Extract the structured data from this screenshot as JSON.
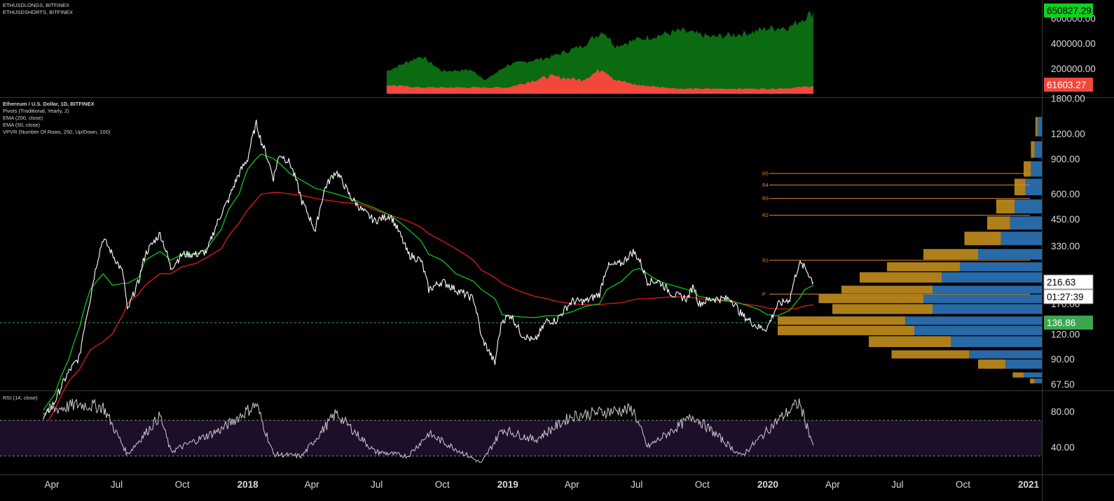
{
  "panes": {
    "top_legend": [
      "ETHUSDLONGS, BITFINEX",
      "ETHUSDSHORTS, BITFINEX"
    ],
    "main_legend": {
      "title": "Ethereum / U.S. Dollar, 1D, BITFINEX",
      "lines": [
        "Pivots (Traditional, Yearly, 2)",
        "EMA (200, close)",
        "EMA (50, close)",
        "VPVR (Number Of Rows, 250, Up/Down, 100)"
      ]
    },
    "rsi_legend": "RSI (14, close)"
  },
  "axis": {
    "top_ticks": [
      "600000.00",
      "400000.00",
      "200000.00"
    ],
    "main_ticks": [
      "1800.00",
      "1200.00",
      "900.00",
      "600.00",
      "450.00",
      "330.00",
      "170.00",
      "120.00",
      "90.00",
      "67.50"
    ],
    "rsi_ticks": [
      "80.00",
      "40.00"
    ],
    "x_ticks": [
      "Apr",
      "Jul",
      "Oct",
      "2018",
      "Apr",
      "Jul",
      "Oct",
      "2019",
      "Apr",
      "Jul",
      "Oct",
      "2020",
      "Apr",
      "Jul",
      "Oct",
      "2021"
    ]
  },
  "tags": {
    "longs_last": "650827.29",
    "shorts_last": "61603.27",
    "price_last": "216.63",
    "countdown": "01:27:39",
    "hline_price": "136.86"
  },
  "pivots": [
    "R5",
    "R4",
    "R3",
    "R2",
    "R1",
    "P"
  ],
  "colors": {
    "longs": "#0b6b12",
    "shorts": "#f2473b",
    "price": "#ffffff",
    "ema50": "#12c31e",
    "ema200": "#e11b1b",
    "pivot": "#e08a2c",
    "vp_up": "#2a6fb0",
    "vp_down": "#b8861b",
    "rsi": "#cccccc",
    "rsi_band": "#1d0f2a",
    "tag_green": "#3aa651",
    "tag_red": "#f2473b",
    "tag_bright_green": "#11d11f"
  },
  "chart_data": {
    "type": "line",
    "title": "Ethereum / U.S. Dollar, 1D, BITFINEX",
    "y_scale": "log",
    "ylim": [
      67.5,
      1800
    ],
    "hline": 136.86,
    "price": {
      "dates": [
        "2017-03-20",
        "2017-04-05",
        "2017-04-25",
        "2017-05-10",
        "2017-05-25",
        "2017-06-12",
        "2017-06-25",
        "2017-07-10",
        "2017-07-16",
        "2017-08-01",
        "2017-08-10",
        "2017-08-31",
        "2017-09-15",
        "2017-10-01",
        "2017-10-20",
        "2017-11-05",
        "2017-11-25",
        "2017-12-05",
        "2017-12-20",
        "2018-01-01",
        "2018-01-13",
        "2018-01-20",
        "2018-02-06",
        "2018-02-15",
        "2018-03-01",
        "2018-03-18",
        "2018-04-06",
        "2018-04-20",
        "2018-05-05",
        "2018-05-25",
        "2018-06-10",
        "2018-06-28",
        "2018-07-20",
        "2018-08-14",
        "2018-09-01",
        "2018-09-12",
        "2018-10-01",
        "2018-10-20",
        "2018-11-14",
        "2018-11-25",
        "2018-12-14",
        "2018-12-24",
        "2019-01-05",
        "2019-01-20",
        "2019-02-08",
        "2019-02-25",
        "2019-03-10",
        "2019-04-01",
        "2019-04-20",
        "2019-05-10",
        "2019-05-20",
        "2019-06-10",
        "2019-06-26",
        "2019-07-05",
        "2019-07-16",
        "2019-08-01",
        "2019-08-20",
        "2019-09-10",
        "2019-09-19",
        "2019-09-26",
        "2019-10-15",
        "2019-10-26",
        "2019-11-10",
        "2019-11-25",
        "2019-12-18",
        "2019-12-31",
        "2020-01-15",
        "2020-02-01",
        "2020-02-14",
        "2020-02-22",
        "2020-03-05"
      ],
      "values": [
        45,
        55,
        78,
        92,
        180,
        360,
        300,
        240,
        155,
        220,
        300,
        380,
        255,
        300,
        300,
        310,
        480,
        560,
        760,
        900,
        1350,
        1100,
        720,
        950,
        860,
        550,
        390,
        650,
        780,
        580,
        500,
        440,
        470,
        300,
        280,
        200,
        220,
        200,
        180,
        115,
        85,
        140,
        150,
        120,
        110,
        140,
        140,
        175,
        175,
        190,
        260,
        270,
        310,
        280,
        220,
        220,
        190,
        180,
        210,
        170,
        180,
        180,
        180,
        150,
        130,
        128,
        168,
        180,
        270,
        258,
        216.63
      ]
    },
    "ema50_values": [
      50,
      60,
      90,
      130,
      200,
      240,
      210,
      215,
      215,
      230,
      280,
      310,
      280,
      300,
      300,
      320,
      400,
      500,
      600,
      800,
      900,
      950,
      900,
      850,
      760,
      700,
      640,
      620,
      600,
      570,
      540,
      510,
      470,
      400,
      350,
      300,
      280,
      240,
      220,
      200,
      180,
      150,
      148,
      146,
      145,
      148,
      148,
      155,
      165,
      170,
      200,
      220,
      250,
      255,
      240,
      220,
      210,
      200,
      195,
      185,
      180,
      178,
      176,
      170,
      160,
      150,
      148,
      158,
      180,
      200,
      210
    ],
    "ema200_values": [
      40,
      50,
      70,
      80,
      100,
      110,
      120,
      150,
      170,
      190,
      210,
      240,
      240,
      260,
      270,
      290,
      320,
      370,
      430,
      500,
      560,
      600,
      610,
      610,
      600,
      590,
      570,
      560,
      550,
      540,
      530,
      500,
      470,
      440,
      410,
      380,
      350,
      320,
      280,
      250,
      230,
      215,
      205,
      195,
      185,
      180,
      175,
      170,
      168,
      168,
      170,
      172,
      178,
      180,
      180,
      182,
      184,
      184,
      182,
      180,
      178,
      176,
      174,
      170,
      166,
      162,
      160,
      160,
      162,
      166,
      168
    ],
    "pivot_levels": {
      "R5": 760,
      "R4": 665,
      "R3": 570,
      "R2": 470,
      "R1": 280,
      "P": 190
    },
    "longs": {
      "dates": [
        "2018-07-15",
        "2018-09-01",
        "2018-10-01",
        "2018-11-10",
        "2018-12-01",
        "2019-01-01",
        "2019-03-01",
        "2019-04-15",
        "2019-05-15",
        "2019-06-01",
        "2019-07-01",
        "2019-09-01",
        "2019-10-15",
        "2019-12-01",
        "2020-01-01",
        "2020-02-01",
        "2020-03-05"
      ],
      "values": [
        180000,
        300000,
        180000,
        190000,
        110000,
        230000,
        290000,
        380000,
        500000,
        380000,
        430000,
        500000,
        450000,
        480000,
        520000,
        530000,
        650827.29
      ]
    },
    "shorts": {
      "dates": [
        "2018-07-15",
        "2018-09-01",
        "2018-10-01",
        "2018-11-10",
        "2018-12-01",
        "2019-01-01",
        "2019-03-01",
        "2019-04-15",
        "2019-05-15",
        "2019-06-01",
        "2019-07-01",
        "2019-09-01",
        "2019-10-15",
        "2019-12-01",
        "2020-01-01",
        "2020-02-01",
        "2020-03-05"
      ],
      "values": [
        70000,
        50000,
        50000,
        50000,
        50000,
        50000,
        140000,
        110000,
        200000,
        110000,
        70000,
        40000,
        40000,
        40000,
        40000,
        45000,
        61603.27
      ]
    },
    "volume_profile": [
      {
        "price": 1300,
        "up": 5,
        "down": 2
      },
      {
        "price": 1000,
        "up": 8,
        "down": 4
      },
      {
        "price": 800,
        "up": 12,
        "down": 8
      },
      {
        "price": 650,
        "up": 18,
        "down": 12
      },
      {
        "price": 520,
        "up": 30,
        "down": 20
      },
      {
        "price": 430,
        "up": 35,
        "down": 25
      },
      {
        "price": 360,
        "up": 45,
        "down": 40
      },
      {
        "price": 300,
        "up": 70,
        "down": 60
      },
      {
        "price": 260,
        "up": 90,
        "down": 80
      },
      {
        "price": 230,
        "up": 110,
        "down": 90
      },
      {
        "price": 200,
        "up": 120,
        "down": 100
      },
      {
        "price": 180,
        "up": 130,
        "down": 115
      },
      {
        "price": 160,
        "up": 120,
        "down": 110
      },
      {
        "price": 140,
        "up": 150,
        "down": 140
      },
      {
        "price": 125,
        "up": 140,
        "down": 150
      },
      {
        "price": 110,
        "up": 100,
        "down": 90
      },
      {
        "price": 95,
        "up": 80,
        "down": 85
      },
      {
        "price": 85,
        "up": 40,
        "down": 30
      },
      {
        "price": 75,
        "up": 20,
        "down": 12
      },
      {
        "price": 70,
        "up": 8,
        "down": 5
      }
    ],
    "rsi": {
      "ylim": [
        20,
        95
      ],
      "levels": [
        70,
        30
      ],
      "dates": [
        "2017-03-20",
        "2017-05-10",
        "2017-06-12",
        "2017-07-16",
        "2017-08-31",
        "2017-09-15",
        "2017-11-25",
        "2018-01-13",
        "2018-02-06",
        "2018-03-18",
        "2018-05-05",
        "2018-06-28",
        "2018-08-14",
        "2018-09-12",
        "2018-11-25",
        "2018-12-24",
        "2019-02-08",
        "2019-04-01",
        "2019-05-20",
        "2019-06-26",
        "2019-07-16",
        "2019-09-19",
        "2019-11-25",
        "2019-12-18",
        "2020-01-15",
        "2020-02-14",
        "2020-03-05"
      ],
      "values": [
        80,
        88,
        85,
        32,
        75,
        35,
        60,
        88,
        32,
        30,
        78,
        35,
        30,
        55,
        22,
        60,
        48,
        75,
        80,
        82,
        40,
        75,
        30,
        48,
        70,
        90,
        42
      ]
    }
  }
}
